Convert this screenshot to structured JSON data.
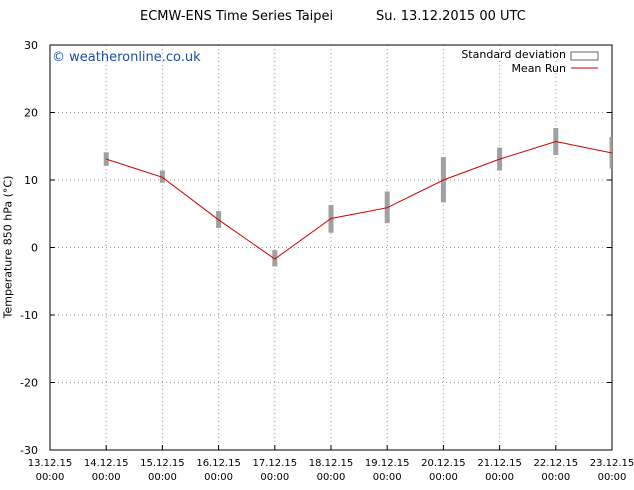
{
  "header": {
    "title_left": "ECMW-ENS Time Series Taipei",
    "title_right": "Su. 13.12.2015 00 UTC"
  },
  "watermark": "© weatheronline.co.uk",
  "legend": {
    "std_label": "Standard deviation",
    "mean_label": "Mean Run"
  },
  "colors": {
    "mean_line": "#cc0000",
    "std_bar": "#a0a0a0",
    "grid": "#999999",
    "watermark": "#1a4fa3"
  },
  "chart_data": {
    "type": "line",
    "ylabel": "Temperature 850 hPa (°C)",
    "ylim": [
      -30,
      30
    ],
    "yticks": [
      -30,
      -20,
      -10,
      0,
      10,
      20,
      30
    ],
    "x_ticks": [
      {
        "date": "13.12.15",
        "time": "00:00"
      },
      {
        "date": "14.12.15",
        "time": "00:00"
      },
      {
        "date": "15.12.15",
        "time": "00:00"
      },
      {
        "date": "16.12.15",
        "time": "00:00"
      },
      {
        "date": "17.12.15",
        "time": "00:00"
      },
      {
        "date": "18.12.15",
        "time": "00:00"
      },
      {
        "date": "19.12.15",
        "time": "00:00"
      },
      {
        "date": "20.12.15",
        "time": "00:00"
      },
      {
        "date": "21.12.15",
        "time": "00:00"
      },
      {
        "date": "22.12.15",
        "time": "00:00"
      },
      {
        "date": "23.12.15",
        "time": "00:00"
      }
    ],
    "grid": true,
    "legend_position": "top-right",
    "series": [
      {
        "name": "Mean Run",
        "x": [
          "14.12.15",
          "15.12.15",
          "16.12.15",
          "17.12.15",
          "18.12.15",
          "19.12.15",
          "20.12.15",
          "21.12.15",
          "22.12.15",
          "23.12.15"
        ],
        "values": [
          13.1,
          10.4,
          4.1,
          -1.7,
          4.3,
          5.9,
          10.0,
          13.1,
          15.7,
          14.0
        ]
      },
      {
        "name": "Standard deviation",
        "x": [
          "14.12.15",
          "15.12.15",
          "16.12.15",
          "17.12.15",
          "18.12.15",
          "19.12.15",
          "20.12.15",
          "21.12.15",
          "22.12.15",
          "23.12.15"
        ],
        "low": [
          12.1,
          9.6,
          2.9,
          -2.8,
          2.2,
          3.6,
          6.7,
          11.4,
          13.7,
          11.7
        ],
        "high": [
          14.1,
          11.4,
          5.4,
          -0.4,
          6.3,
          8.3,
          13.4,
          14.8,
          17.7,
          16.4
        ]
      }
    ]
  }
}
